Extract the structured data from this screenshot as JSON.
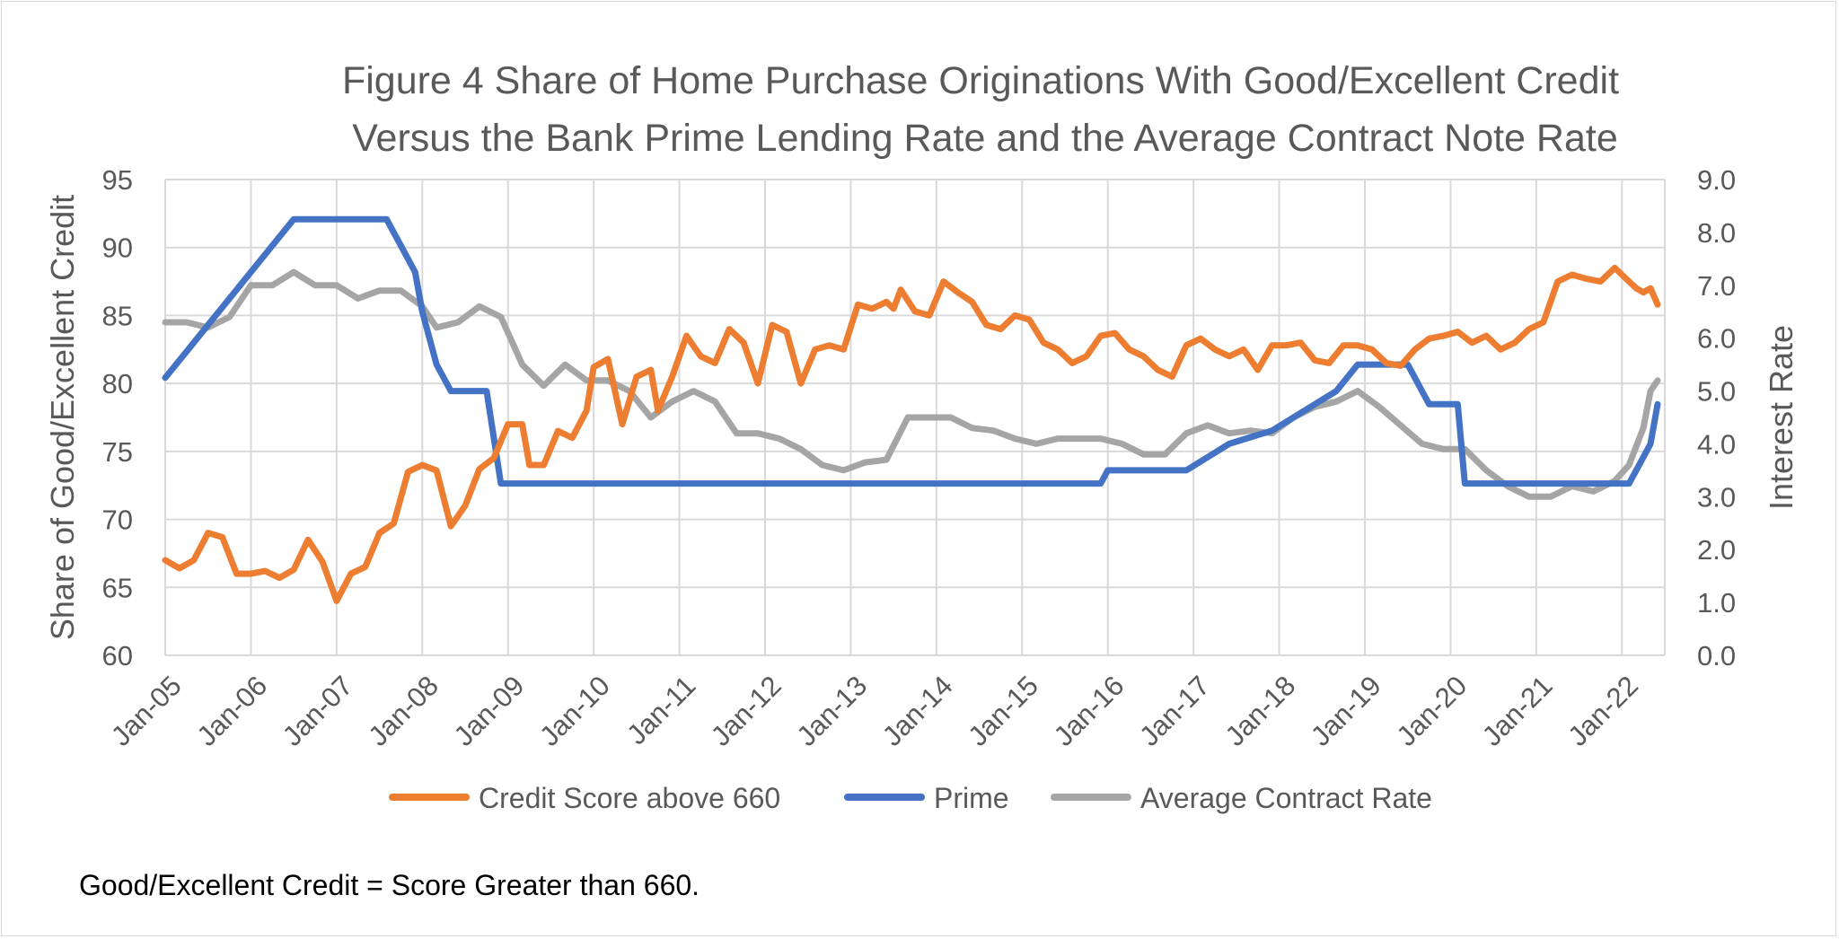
{
  "chart_data": {
    "type": "line",
    "title_lines": [
      "Figure 4 Share of Home Purchase Originations With Good/Excellent Credit",
      "Versus the Bank Prime Lending Rate and the Average Contract Note Rate"
    ],
    "footnote": "Good/Excellent Credit = Score Greater than 660.",
    "ylabel_left": "Share of Good/Excellent Credit",
    "ylabel_right": "Interest Rate",
    "ylim_left": [
      60,
      95
    ],
    "ylim_right": [
      0,
      9
    ],
    "yticks_left": [
      "60",
      "65",
      "70",
      "75",
      "80",
      "85",
      "90",
      "95"
    ],
    "yticks_right": [
      "0.0",
      "1.0",
      "2.0",
      "3.0",
      "4.0",
      "5.0",
      "6.0",
      "7.0",
      "8.0",
      "9.0"
    ],
    "x_start": "2005-01",
    "x_end": "2022-06",
    "xticks": [
      "Jan-05",
      "Jan-06",
      "Jan-07",
      "Jan-08",
      "Jan-09",
      "Jan-10",
      "Jan-11",
      "Jan-12",
      "Jan-13",
      "Jan-14",
      "Jan-15",
      "Jan-16",
      "Jan-17",
      "Jan-18",
      "Jan-19",
      "Jan-20",
      "Jan-21",
      "Jan-22"
    ],
    "grid": true,
    "legend_position": "bottom",
    "series": [
      {
        "name": "Credit Score above 660",
        "axis": "left",
        "color": "#ed7d31",
        "points": [
          [
            "2005-01",
            67.0
          ],
          [
            "2005-03",
            66.4
          ],
          [
            "2005-05",
            67.0
          ],
          [
            "2005-07",
            69.0
          ],
          [
            "2005-09",
            68.7
          ],
          [
            "2005-11",
            66.0
          ],
          [
            "2006-01",
            66.0
          ],
          [
            "2006-03",
            66.2
          ],
          [
            "2006-05",
            65.7
          ],
          [
            "2006-07",
            66.3
          ],
          [
            "2006-09",
            68.5
          ],
          [
            "2006-11",
            66.9
          ],
          [
            "2007-01",
            64.0
          ],
          [
            "2007-03",
            66.0
          ],
          [
            "2007-05",
            66.5
          ],
          [
            "2007-07",
            69.0
          ],
          [
            "2007-09",
            69.7
          ],
          [
            "2007-11",
            73.5
          ],
          [
            "2008-01",
            74.0
          ],
          [
            "2008-03",
            73.6
          ],
          [
            "2008-05",
            69.5
          ],
          [
            "2008-07",
            71.0
          ],
          [
            "2008-09",
            73.7
          ],
          [
            "2008-11",
            74.5
          ],
          [
            "2009-01",
            77.0
          ],
          [
            "2009-03",
            77.0
          ],
          [
            "2009-04",
            74.0
          ],
          [
            "2009-06",
            74.0
          ],
          [
            "2009-08",
            76.5
          ],
          [
            "2009-10",
            76.0
          ],
          [
            "2009-12",
            78.0
          ],
          [
            "2010-01",
            81.2
          ],
          [
            "2010-03",
            81.8
          ],
          [
            "2010-05",
            77.0
          ],
          [
            "2010-07",
            80.5
          ],
          [
            "2010-09",
            81.0
          ],
          [
            "2010-10",
            78.0
          ],
          [
            "2010-12",
            80.5
          ],
          [
            "2011-02",
            83.5
          ],
          [
            "2011-04",
            82.0
          ],
          [
            "2011-06",
            81.5
          ],
          [
            "2011-08",
            84.0
          ],
          [
            "2011-10",
            83.0
          ],
          [
            "2011-12",
            80.0
          ],
          [
            "2012-02",
            84.3
          ],
          [
            "2012-04",
            83.8
          ],
          [
            "2012-06",
            80.0
          ],
          [
            "2012-08",
            82.5
          ],
          [
            "2012-10",
            82.8
          ],
          [
            "2012-12",
            82.5
          ],
          [
            "2013-02",
            85.8
          ],
          [
            "2013-04",
            85.5
          ],
          [
            "2013-06",
            86.0
          ],
          [
            "2013-07",
            85.5
          ],
          [
            "2013-08",
            86.9
          ],
          [
            "2013-10",
            85.3
          ],
          [
            "2013-12",
            85.0
          ],
          [
            "2014-02",
            87.5
          ],
          [
            "2014-04",
            86.7
          ],
          [
            "2014-06",
            86.0
          ],
          [
            "2014-08",
            84.3
          ],
          [
            "2014-10",
            84.0
          ],
          [
            "2014-12",
            85.0
          ],
          [
            "2015-02",
            84.7
          ],
          [
            "2015-04",
            83.0
          ],
          [
            "2015-06",
            82.5
          ],
          [
            "2015-08",
            81.5
          ],
          [
            "2015-10",
            82.0
          ],
          [
            "2015-12",
            83.5
          ],
          [
            "2016-02",
            83.7
          ],
          [
            "2016-04",
            82.5
          ],
          [
            "2016-06",
            82.0
          ],
          [
            "2016-08",
            81.0
          ],
          [
            "2016-10",
            80.5
          ],
          [
            "2016-12",
            82.8
          ],
          [
            "2017-02",
            83.3
          ],
          [
            "2017-04",
            82.5
          ],
          [
            "2017-06",
            82.0
          ],
          [
            "2017-08",
            82.5
          ],
          [
            "2017-10",
            81.0
          ],
          [
            "2017-12",
            82.8
          ],
          [
            "2018-02",
            82.8
          ],
          [
            "2018-04",
            83.0
          ],
          [
            "2018-06",
            81.7
          ],
          [
            "2018-08",
            81.5
          ],
          [
            "2018-10",
            82.8
          ],
          [
            "2018-12",
            82.8
          ],
          [
            "2019-02",
            82.5
          ],
          [
            "2019-04",
            81.5
          ],
          [
            "2019-06",
            81.3
          ],
          [
            "2019-08",
            82.5
          ],
          [
            "2019-10",
            83.3
          ],
          [
            "2019-12",
            83.5
          ],
          [
            "2020-02",
            83.8
          ],
          [
            "2020-04",
            83.0
          ],
          [
            "2020-06",
            83.5
          ],
          [
            "2020-08",
            82.5
          ],
          [
            "2020-10",
            83.0
          ],
          [
            "2020-12",
            84.0
          ],
          [
            "2021-02",
            84.5
          ],
          [
            "2021-04",
            87.5
          ],
          [
            "2021-06",
            88.0
          ],
          [
            "2021-08",
            87.7
          ],
          [
            "2021-10",
            87.5
          ],
          [
            "2021-12",
            88.5
          ],
          [
            "2022-02",
            87.5
          ],
          [
            "2022-03",
            87.0
          ],
          [
            "2022-04",
            86.7
          ],
          [
            "2022-05",
            87.0
          ],
          [
            "2022-06",
            85.8
          ]
        ]
      },
      {
        "name": "Prime",
        "axis": "right",
        "color": "#4472c4",
        "points": [
          [
            "2005-01",
            5.25
          ],
          [
            "2005-04",
            5.75
          ],
          [
            "2005-07",
            6.25
          ],
          [
            "2005-10",
            6.75
          ],
          [
            "2006-01",
            7.25
          ],
          [
            "2006-04",
            7.75
          ],
          [
            "2006-07",
            8.25
          ],
          [
            "2007-08",
            8.25
          ],
          [
            "2007-10",
            7.75
          ],
          [
            "2007-12",
            7.25
          ],
          [
            "2008-01",
            6.5
          ],
          [
            "2008-03",
            5.5
          ],
          [
            "2008-05",
            5.0
          ],
          [
            "2008-10",
            5.0
          ],
          [
            "2008-12",
            3.25
          ],
          [
            "2015-12",
            3.25
          ],
          [
            "2016-01",
            3.5
          ],
          [
            "2016-12",
            3.5
          ],
          [
            "2017-03",
            3.75
          ],
          [
            "2017-06",
            4.0
          ],
          [
            "2017-12",
            4.25
          ],
          [
            "2018-03",
            4.5
          ],
          [
            "2018-06",
            4.75
          ],
          [
            "2018-09",
            5.0
          ],
          [
            "2018-12",
            5.5
          ],
          [
            "2019-07",
            5.5
          ],
          [
            "2019-08",
            5.25
          ],
          [
            "2019-09",
            5.0
          ],
          [
            "2019-10",
            4.75
          ],
          [
            "2020-02",
            4.75
          ],
          [
            "2020-03",
            3.25
          ],
          [
            "2022-02",
            3.25
          ],
          [
            "2022-03",
            3.5
          ],
          [
            "2022-05",
            4.0
          ],
          [
            "2022-06",
            4.75
          ]
        ]
      },
      {
        "name": "Average Contract Rate",
        "axis": "right",
        "color": "#a5a5a5",
        "points": [
          [
            "2005-01",
            6.3
          ],
          [
            "2005-04",
            6.3
          ],
          [
            "2005-07",
            6.2
          ],
          [
            "2005-10",
            6.4
          ],
          [
            "2006-01",
            7.0
          ],
          [
            "2006-04",
            7.0
          ],
          [
            "2006-07",
            7.25
          ],
          [
            "2006-10",
            7.0
          ],
          [
            "2007-01",
            7.0
          ],
          [
            "2007-04",
            6.75
          ],
          [
            "2007-07",
            6.9
          ],
          [
            "2007-10",
            6.9
          ],
          [
            "2008-01",
            6.6
          ],
          [
            "2008-03",
            6.2
          ],
          [
            "2008-06",
            6.3
          ],
          [
            "2008-09",
            6.6
          ],
          [
            "2008-12",
            6.4
          ],
          [
            "2009-03",
            5.5
          ],
          [
            "2009-06",
            5.1
          ],
          [
            "2009-09",
            5.5
          ],
          [
            "2009-12",
            5.2
          ],
          [
            "2010-03",
            5.2
          ],
          [
            "2010-06",
            5.0
          ],
          [
            "2010-09",
            4.5
          ],
          [
            "2010-12",
            4.8
          ],
          [
            "2011-03",
            5.0
          ],
          [
            "2011-06",
            4.8
          ],
          [
            "2011-09",
            4.2
          ],
          [
            "2011-12",
            4.2
          ],
          [
            "2012-03",
            4.1
          ],
          [
            "2012-06",
            3.9
          ],
          [
            "2012-09",
            3.6
          ],
          [
            "2012-12",
            3.5
          ],
          [
            "2013-03",
            3.65
          ],
          [
            "2013-06",
            3.7
          ],
          [
            "2013-09",
            4.5
          ],
          [
            "2013-12",
            4.5
          ],
          [
            "2014-03",
            4.5
          ],
          [
            "2014-06",
            4.3
          ],
          [
            "2014-09",
            4.25
          ],
          [
            "2014-12",
            4.1
          ],
          [
            "2015-03",
            4.0
          ],
          [
            "2015-06",
            4.1
          ],
          [
            "2015-09",
            4.1
          ],
          [
            "2015-12",
            4.1
          ],
          [
            "2016-03",
            4.0
          ],
          [
            "2016-06",
            3.8
          ],
          [
            "2016-09",
            3.8
          ],
          [
            "2016-12",
            4.2
          ],
          [
            "2017-03",
            4.35
          ],
          [
            "2017-06",
            4.2
          ],
          [
            "2017-09",
            4.25
          ],
          [
            "2017-12",
            4.2
          ],
          [
            "2018-03",
            4.5
          ],
          [
            "2018-06",
            4.7
          ],
          [
            "2018-09",
            4.8
          ],
          [
            "2018-12",
            5.0
          ],
          [
            "2019-03",
            4.7
          ],
          [
            "2019-06",
            4.35
          ],
          [
            "2019-09",
            4.0
          ],
          [
            "2019-12",
            3.9
          ],
          [
            "2020-03",
            3.9
          ],
          [
            "2020-06",
            3.5
          ],
          [
            "2020-09",
            3.2
          ],
          [
            "2020-12",
            3.0
          ],
          [
            "2021-03",
            3.0
          ],
          [
            "2021-06",
            3.2
          ],
          [
            "2021-09",
            3.1
          ],
          [
            "2021-12",
            3.3
          ],
          [
            "2022-02",
            3.6
          ],
          [
            "2022-04",
            4.3
          ],
          [
            "2022-05",
            5.0
          ],
          [
            "2022-06",
            5.2
          ]
        ]
      }
    ]
  }
}
